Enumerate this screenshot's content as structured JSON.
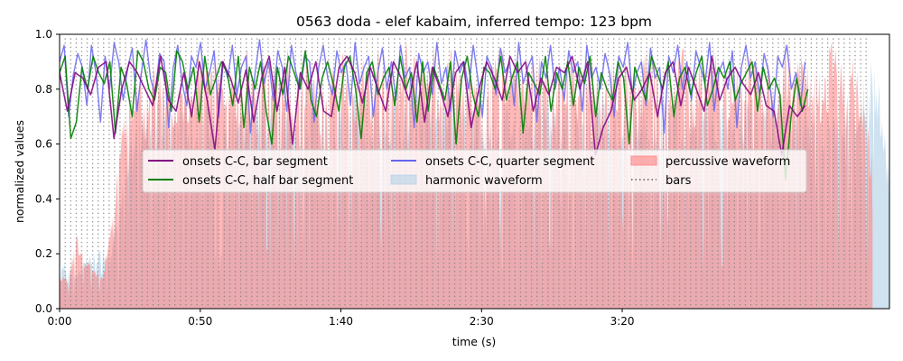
{
  "chart_data": {
    "type": "line",
    "title": "0563 doda - elef kabaim, inferred tempo: 123 bpm",
    "xlabel": "time (s)",
    "ylabel": "normalized values",
    "xlim": [
      0,
      295
    ],
    "ylim": [
      0,
      1.0
    ],
    "x_ticks": [
      0,
      50,
      100,
      150,
      200
    ],
    "x_tick_labels": [
      "0:00",
      "0:50",
      "1:40",
      "2:30",
      "3:20"
    ],
    "y_ticks": [
      0,
      0.2,
      0.4,
      0.6,
      0.8,
      1.0
    ],
    "y_tick_labels": [
      "0.0",
      "0.2",
      "0.4",
      "0.6",
      "0.8",
      "1.0"
    ],
    "grid": false,
    "legend": {
      "placement": "center",
      "columns": 3,
      "entries": [
        {
          "label": "onsets C-C, bar segment",
          "kind": "line",
          "color": "#800080"
        },
        {
          "label": "onsets C-C, half bar segment",
          "kind": "line",
          "color": "#008000"
        },
        {
          "label": "onsets C-C, quarter segment",
          "kind": "line",
          "color": "#6666ee"
        },
        {
          "label": "harmonic waveform",
          "kind": "patch",
          "color": "#b4d2e8"
        },
        {
          "label": "percussive waveform",
          "kind": "patch",
          "color": "#ff8080"
        },
        {
          "label": "bars",
          "kind": "dotted",
          "color": "#808080"
        }
      ]
    },
    "series": [
      {
        "name": "onsets C-C, bar segment",
        "color": "#800080",
        "x_start": 0,
        "x_end": 265,
        "values": [
          0.86,
          0.72,
          0.86,
          0.84,
          0.78,
          0.88,
          0.9,
          0.62,
          0.8,
          0.9,
          0.86,
          0.8,
          0.74,
          0.92,
          0.76,
          0.72,
          0.86,
          0.7,
          0.9,
          0.76,
          0.58,
          0.9,
          0.84,
          0.75,
          0.87,
          0.68,
          0.84,
          0.92,
          0.72,
          0.88,
          0.6,
          0.86,
          0.8,
          0.9,
          0.72,
          0.7,
          0.88,
          0.92,
          0.86,
          0.75,
          0.88,
          0.8,
          0.72,
          0.9,
          0.84,
          0.76,
          0.9,
          0.68,
          0.88,
          0.8,
          0.7,
          0.86,
          0.9,
          0.66,
          0.8,
          0.9,
          0.84,
          0.76,
          0.92,
          0.86,
          0.9,
          0.72,
          0.84,
          0.78,
          0.88,
          0.86,
          0.92,
          0.8,
          0.9,
          0.56,
          0.66,
          0.72,
          0.84,
          0.88,
          0.76,
          0.8,
          0.86,
          0.7,
          0.86,
          0.9,
          0.74,
          0.88,
          0.8,
          0.72,
          0.92,
          0.76,
          0.84,
          0.88,
          0.82,
          0.78,
          0.86,
          0.74,
          0.72,
          0.56,
          0.74,
          0.7,
          0.74
        ]
      },
      {
        "name": "onsets C-C, half bar segment",
        "color": "#008000",
        "x_start": 0,
        "x_end": 266,
        "values": [
          0.86,
          0.92,
          0.62,
          0.68,
          0.88,
          0.8,
          0.92,
          0.86,
          0.82,
          0.9,
          0.64,
          0.88,
          0.82,
          0.7,
          0.94,
          0.9,
          0.8,
          0.76,
          0.88,
          0.86,
          0.72,
          0.94,
          0.9,
          0.8,
          0.88,
          0.68,
          0.92,
          0.78,
          0.84,
          0.9,
          0.86,
          0.74,
          0.92,
          0.66,
          0.88,
          0.8,
          0.9,
          0.72,
          0.6,
          0.88,
          0.78,
          0.92,
          0.86,
          0.8,
          0.94,
          0.76,
          0.7,
          0.84,
          0.9,
          0.82,
          0.72,
          0.88,
          0.92,
          0.8,
          0.62,
          0.86,
          0.9,
          0.78,
          0.84,
          0.88,
          0.74,
          0.92,
          0.8,
          0.86,
          0.68,
          0.9,
          0.72,
          0.88,
          0.82,
          0.76,
          0.9,
          0.6,
          0.84,
          0.92,
          0.78,
          0.7,
          0.88,
          0.86,
          0.8,
          0.92,
          0.76,
          0.84,
          0.9,
          0.64,
          0.86,
          0.82,
          0.78,
          0.92,
          0.72,
          0.86,
          0.8,
          0.9,
          0.74,
          0.88,
          0.82,
          0.92,
          0.7,
          0.86,
          0.8,
          0.76,
          0.9,
          0.84,
          0.6,
          0.88,
          0.82,
          0.76,
          0.92,
          0.86,
          0.8,
          0.9,
          0.7,
          0.84,
          0.88,
          0.78,
          0.86,
          0.92,
          0.74,
          0.8,
          0.88,
          0.84,
          0.9,
          0.76,
          0.82,
          0.86,
          0.9,
          0.72,
          0.88,
          0.8,
          0.84,
          0.78,
          0.47,
          0.7,
          0.84,
          0.72,
          0.8
        ]
      },
      {
        "name": "onsets C-C, quarter segment",
        "color": "#6666ee",
        "x_start": 0,
        "x_end": 265,
        "values": [
          0.9,
          0.96,
          0.7,
          0.85,
          0.93,
          0.88,
          0.74,
          0.96,
          0.86,
          0.68,
          0.92,
          0.8,
          0.97,
          0.9,
          0.76,
          0.88,
          0.95,
          0.72,
          0.86,
          0.98,
          0.84,
          0.78,
          0.93,
          0.9,
          0.66,
          0.88,
          0.96,
          0.82,
          0.74,
          0.92,
          0.88,
          0.97,
          0.8,
          0.86,
          0.94,
          0.7,
          0.9,
          0.84,
          0.96,
          0.78,
          0.88,
          0.92,
          0.64,
          0.86,
          0.98,
          0.82,
          0.9,
          0.76,
          0.94,
          0.88,
          0.72,
          0.96,
          0.86,
          0.8,
          0.92,
          0.9,
          0.68,
          0.88,
          0.96,
          0.84,
          0.78,
          0.94,
          0.86,
          0.9,
          0.74,
          0.97,
          0.82,
          0.88,
          0.92,
          0.7,
          0.86,
          0.95,
          0.8,
          0.9,
          0.76,
          0.96,
          0.84,
          0.88,
          0.66,
          0.93,
          0.86,
          0.9,
          0.78,
          0.97,
          0.82,
          0.88,
          0.72,
          0.94,
          0.86,
          0.9,
          0.8,
          0.96,
          0.84,
          0.7,
          0.92,
          0.88,
          0.78,
          0.95,
          0.86,
          0.9,
          0.74,
          0.97,
          0.82,
          0.88,
          0.92,
          0.68,
          0.9,
          0.84,
          0.96,
          0.8,
          0.88,
          0.76,
          0.94,
          0.86,
          0.9,
          0.72,
          0.96,
          0.84,
          0.88,
          0.8,
          0.93,
          0.86,
          0.7,
          0.92,
          0.88,
          0.97,
          0.78,
          0.86,
          0.9,
          0.74,
          0.95,
          0.84,
          0.88,
          0.64,
          0.92,
          0.86,
          0.96,
          0.8,
          0.9,
          0.76,
          0.94,
          0.88,
          0.82,
          0.97,
          0.72,
          0.86,
          0.9,
          0.8,
          0.94,
          0.66,
          0.88,
          0.96,
          0.84,
          0.9,
          0.78,
          0.93,
          0.86,
          0.7,
          0.92,
          0.88,
          0.96,
          0.8,
          0.86,
          0.74,
          0.9
        ]
      }
    ],
    "areas": [
      {
        "name": "harmonic waveform",
        "color": "#a6cbe3",
        "x_start": 0,
        "x_end": 296,
        "values": [
          0.16,
          0.14,
          0.12,
          0.16,
          0.18,
          0.2,
          0.22,
          0.38,
          0.52,
          0.66,
          0.62,
          0.7,
          0.68,
          0.64,
          0.72,
          0.66,
          0.6,
          0.7,
          0.68,
          0.62,
          0.7,
          0.66,
          0.64,
          0.72,
          0.68,
          0.62,
          0.66,
          0.7,
          0.64,
          0.68,
          0.66,
          0.6,
          0.7,
          0.66,
          0.72,
          0.64,
          0.68,
          0.62,
          0.7,
          0.66,
          0.64,
          0.7,
          0.68,
          0.62,
          0.66,
          0.72,
          0.64,
          0.68,
          0.66,
          0.6,
          0.7,
          0.68,
          0.64,
          0.66,
          0.62,
          0.7,
          0.68,
          0.64,
          0.72,
          0.66,
          0.6,
          0.68,
          0.7,
          0.64,
          0.66,
          0.62,
          0.7,
          0.68,
          0.64,
          0.66,
          0.72,
          0.62,
          0.68,
          0.66,
          0.7,
          0.64,
          0.68,
          0.62,
          0.66,
          0.7,
          0.64,
          0.68,
          0.72,
          0.66,
          0.62,
          0.68,
          0.7,
          0.64,
          0.66,
          0.6,
          0.72,
          0.68,
          0.76,
          0.82,
          0.62,
          0.3
        ]
      },
      {
        "name": "percussive waveform",
        "color": "#ff7b7b",
        "x_start": 0,
        "x_end": 289,
        "values": [
          0.12,
          0.1,
          0.24,
          0.16,
          0.14,
          0.1,
          0.3,
          0.56,
          0.72,
          0.78,
          0.68,
          0.8,
          0.86,
          0.74,
          0.82,
          0.7,
          0.84,
          0.78,
          0.88,
          0.72,
          0.8,
          0.76,
          0.86,
          0.7,
          0.82,
          0.78,
          0.88,
          0.74,
          0.8,
          0.84,
          0.72,
          0.86,
          0.78,
          0.82,
          0.7,
          0.88,
          0.76,
          0.84,
          0.8,
          0.74,
          0.86,
          0.82,
          0.78,
          0.88,
          0.72,
          0.84,
          0.8,
          0.76,
          0.86,
          0.7,
          0.82,
          0.88,
          0.74,
          0.8,
          0.84,
          0.78,
          0.86,
          0.72,
          0.82,
          0.88,
          0.76,
          0.84,
          0.8,
          0.7,
          0.86,
          0.78,
          0.82,
          0.74,
          0.88,
          0.8,
          0.84,
          0.76,
          0.86,
          0.72,
          0.82,
          0.78,
          0.88,
          0.74,
          0.84,
          0.8,
          0.86,
          0.76,
          0.82,
          0.7,
          0.88,
          0.78,
          0.84,
          0.8,
          0.74,
          0.86,
          0.82,
          0.76,
          0.84,
          0.66,
          0.5
        ]
      }
    ],
    "bars_lines": {
      "name": "bars",
      "color": "#808080",
      "x_start": 2,
      "x_end": 287,
      "step": 1.95
    }
  }
}
